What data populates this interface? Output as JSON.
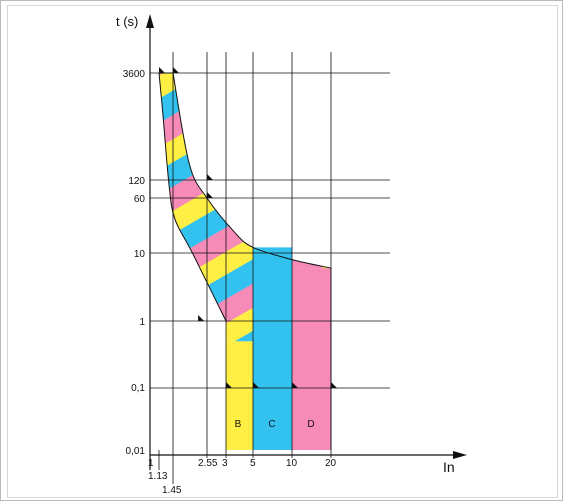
{
  "chart_data": {
    "type": "area",
    "title": "",
    "xlabel": "In",
    "ylabel": "t (s)",
    "x_scale": "log",
    "y_scale": "log",
    "x_tick_labels": [
      "1",
      "1.13",
      "1.45",
      "2.55",
      "3",
      "5",
      "10",
      "20"
    ],
    "y_tick_labels": [
      "3600",
      "120",
      "60",
      "10",
      "1",
      "0,1",
      "0,01"
    ],
    "grid": true,
    "legend": "none",
    "tripping_band": {
      "pattern_colors": [
        "#f58bb6",
        "#ffee44",
        "#33c2ef"
      ],
      "lower_curve": [
        {
          "x": 1.13,
          "t": 3600
        },
        {
          "x": 1.21,
          "t": 1000
        },
        {
          "x": 1.35,
          "t": 100
        },
        {
          "x": 1.5,
          "t": 30
        },
        {
          "x": 2,
          "t": 10
        },
        {
          "x": 3,
          "t": 1
        }
      ],
      "upper_curve": [
        {
          "x": 1.45,
          "t": 3600
        },
        {
          "x": 1.9,
          "t": 200
        },
        {
          "x": 2.55,
          "t": 60
        },
        {
          "x": 3.5,
          "t": 20
        },
        {
          "x": 5,
          "t": 12
        },
        {
          "x": 10,
          "t": 8
        },
        {
          "x": 20,
          "t": 6
        }
      ]
    },
    "series": [
      {
        "name": "B",
        "color": "#ffee44",
        "x_from": 3,
        "x_to": 5,
        "t_top": 0.5
      },
      {
        "name": "C",
        "color": "#33c2ef",
        "x_from": 5,
        "x_to": 10,
        "t_top": 12
      },
      {
        "name": "D",
        "color": "#f58bb6",
        "x_from": 10,
        "x_to": 20,
        "t_top": 6
      }
    ]
  }
}
